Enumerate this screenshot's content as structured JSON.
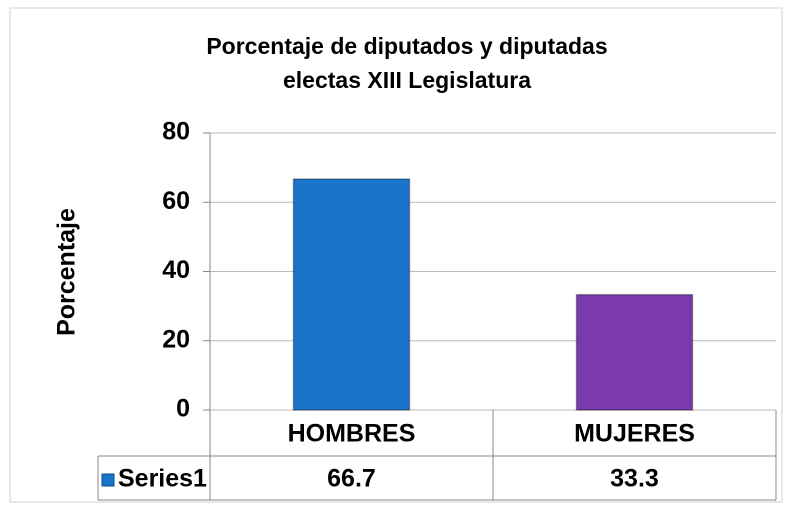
{
  "chart_data": {
    "type": "bar",
    "title": [
      "Porcentaje de diputados y diputadas",
      "electas XIII Legislatura"
    ],
    "y_label": "Porcentaje",
    "categories": [
      "HOMBRES",
      "MUJERES"
    ],
    "series": [
      {
        "name": "Series1",
        "color": "#1b74cc",
        "bar_colors": [
          "#1b74cc",
          "#7a3aae"
        ],
        "values": [
          66.7,
          33.3
        ]
      }
    ],
    "ylim": [
      0,
      80
    ],
    "yticks": [
      0,
      20,
      40,
      60,
      80
    ],
    "grid": true,
    "data_table": true
  }
}
